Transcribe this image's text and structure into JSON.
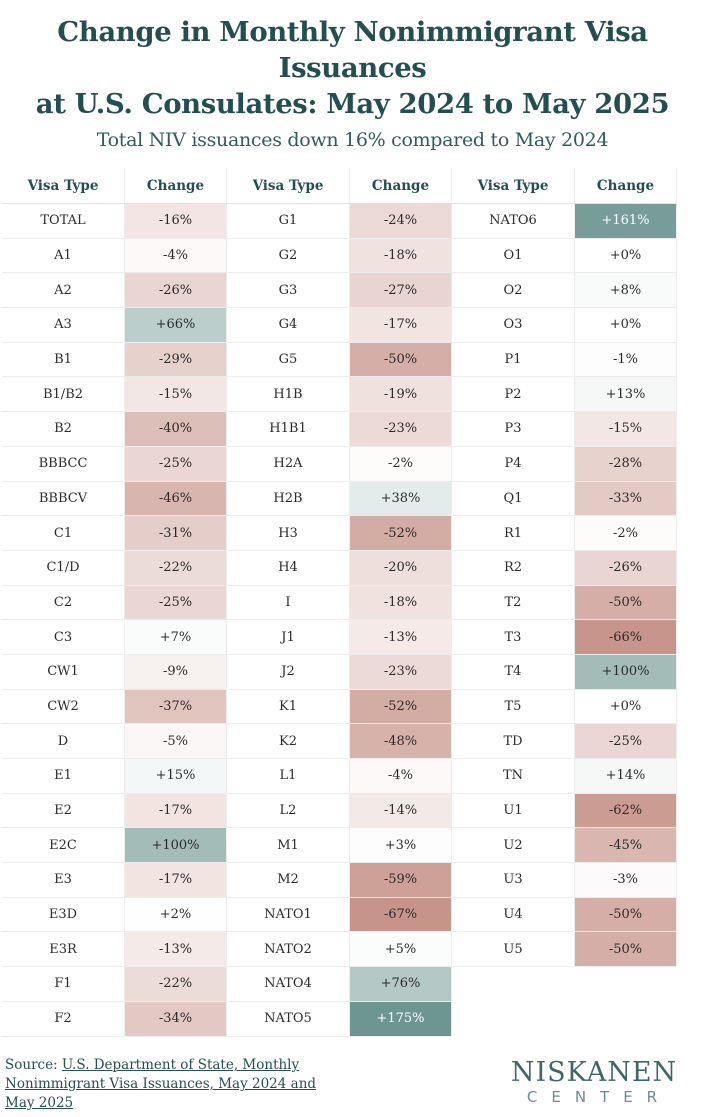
{
  "title_line1": "Change in Monthly Nonimmigrant Visa",
  "title_line2": "Issuances",
  "title_line3": "at U.S. Consulates: May 2024 to May 2025",
  "subtitle": "Total NIV issuances down 16% compared to May 2024",
  "headers": {
    "type": "Visa Type",
    "change": "Change"
  },
  "source_prefix": "Source: ",
  "source_link": "U.S. Department of State, Monthly Nonimmigrant Visa Issuances, May 2024 and May 2025",
  "logo_main": "NISKANEN",
  "logo_sub": "CENTER",
  "colors": {
    "positive": "#6e9690",
    "negative": "#c48f84",
    "neutral": "#ffffff",
    "title": "#234f52"
  },
  "chart_data": {
    "type": "table",
    "columns": [
      "Visa Type",
      "Change"
    ],
    "groups": [
      [
        {
          "type": "TOTAL",
          "change": "-16%",
          "value": -16
        },
        {
          "type": "A1",
          "change": "-4%",
          "value": -4
        },
        {
          "type": "A2",
          "change": "-26%",
          "value": -26
        },
        {
          "type": "A3",
          "change": "+66%",
          "value": 66
        },
        {
          "type": "B1",
          "change": "-29%",
          "value": -29
        },
        {
          "type": "B1/B2",
          "change": "-15%",
          "value": -15
        },
        {
          "type": "B2",
          "change": "-40%",
          "value": -40
        },
        {
          "type": "BBBCC",
          "change": "-25%",
          "value": -25
        },
        {
          "type": "BBBCV",
          "change": "-46%",
          "value": -46
        },
        {
          "type": "C1",
          "change": "-31%",
          "value": -31
        },
        {
          "type": "C1/D",
          "change": "-22%",
          "value": -22
        },
        {
          "type": "C2",
          "change": "-25%",
          "value": -25
        },
        {
          "type": "C3",
          "change": "+7%",
          "value": 7
        },
        {
          "type": "CW1",
          "change": "-9%",
          "value": -9
        },
        {
          "type": "CW2",
          "change": "-37%",
          "value": -37
        },
        {
          "type": "D",
          "change": "-5%",
          "value": -5
        },
        {
          "type": "E1",
          "change": "+15%",
          "value": 15
        },
        {
          "type": "E2",
          "change": "-17%",
          "value": -17
        },
        {
          "type": "E2C",
          "change": "+100%",
          "value": 100
        },
        {
          "type": "E3",
          "change": "-17%",
          "value": -17
        },
        {
          "type": "E3D",
          "change": "+2%",
          "value": 2
        },
        {
          "type": "E3R",
          "change": "-13%",
          "value": -13
        },
        {
          "type": "F1",
          "change": "-22%",
          "value": -22
        },
        {
          "type": "F2",
          "change": "-34%",
          "value": -34
        }
      ],
      [
        {
          "type": "G1",
          "change": "-24%",
          "value": -24
        },
        {
          "type": "G2",
          "change": "-18%",
          "value": -18
        },
        {
          "type": "G3",
          "change": "-27%",
          "value": -27
        },
        {
          "type": "G4",
          "change": "-17%",
          "value": -17
        },
        {
          "type": "G5",
          "change": "-50%",
          "value": -50
        },
        {
          "type": "H1B",
          "change": "-19%",
          "value": -19
        },
        {
          "type": "H1B1",
          "change": "-23%",
          "value": -23
        },
        {
          "type": "H2A",
          "change": "-2%",
          "value": -2
        },
        {
          "type": "H2B",
          "change": "+38%",
          "value": 38
        },
        {
          "type": "H3",
          "change": "-52%",
          "value": -52
        },
        {
          "type": "H4",
          "change": "-20%",
          "value": -20
        },
        {
          "type": "I",
          "change": "-18%",
          "value": -18
        },
        {
          "type": "J1",
          "change": "-13%",
          "value": -13
        },
        {
          "type": "J2",
          "change": "-23%",
          "value": -23
        },
        {
          "type": "K1",
          "change": "-52%",
          "value": -52
        },
        {
          "type": "K2",
          "change": "-48%",
          "value": -48
        },
        {
          "type": "L1",
          "change": "-4%",
          "value": -4
        },
        {
          "type": "L2",
          "change": "-14%",
          "value": -14
        },
        {
          "type": "M1",
          "change": "+3%",
          "value": 3
        },
        {
          "type": "M2",
          "change": "-59%",
          "value": -59
        },
        {
          "type": "NATO1",
          "change": "-67%",
          "value": -67
        },
        {
          "type": "NATO2",
          "change": "+5%",
          "value": 5
        },
        {
          "type": "NATO4",
          "change": "+76%",
          "value": 76
        },
        {
          "type": "NATO5",
          "change": "+175%",
          "value": 175
        }
      ],
      [
        {
          "type": "NATO6",
          "change": "+161%",
          "value": 161
        },
        {
          "type": "O1",
          "change": "+0%",
          "value": 0
        },
        {
          "type": "O2",
          "change": "+8%",
          "value": 8
        },
        {
          "type": "O3",
          "change": "+0%",
          "value": 0
        },
        {
          "type": "P1",
          "change": "-1%",
          "value": -1
        },
        {
          "type": "P2",
          "change": "+13%",
          "value": 13
        },
        {
          "type": "P3",
          "change": "-15%",
          "value": -15
        },
        {
          "type": "P4",
          "change": "-28%",
          "value": -28
        },
        {
          "type": "Q1",
          "change": "-33%",
          "value": -33
        },
        {
          "type": "R1",
          "change": "-2%",
          "value": -2
        },
        {
          "type": "R2",
          "change": "-26%",
          "value": -26
        },
        {
          "type": "T2",
          "change": "-50%",
          "value": -50
        },
        {
          "type": "T3",
          "change": "-66%",
          "value": -66
        },
        {
          "type": "T4",
          "change": "+100%",
          "value": 100
        },
        {
          "type": "T5",
          "change": "+0%",
          "value": 0
        },
        {
          "type": "TD",
          "change": "-25%",
          "value": -25
        },
        {
          "type": "TN",
          "change": "+14%",
          "value": 14
        },
        {
          "type": "U1",
          "change": "-62%",
          "value": -62
        },
        {
          "type": "U2",
          "change": "-45%",
          "value": -45
        },
        {
          "type": "U3",
          "change": "-3%",
          "value": -3
        },
        {
          "type": "U4",
          "change": "-50%",
          "value": -50
        },
        {
          "type": "U5",
          "change": "-50%",
          "value": -50
        }
      ]
    ]
  }
}
